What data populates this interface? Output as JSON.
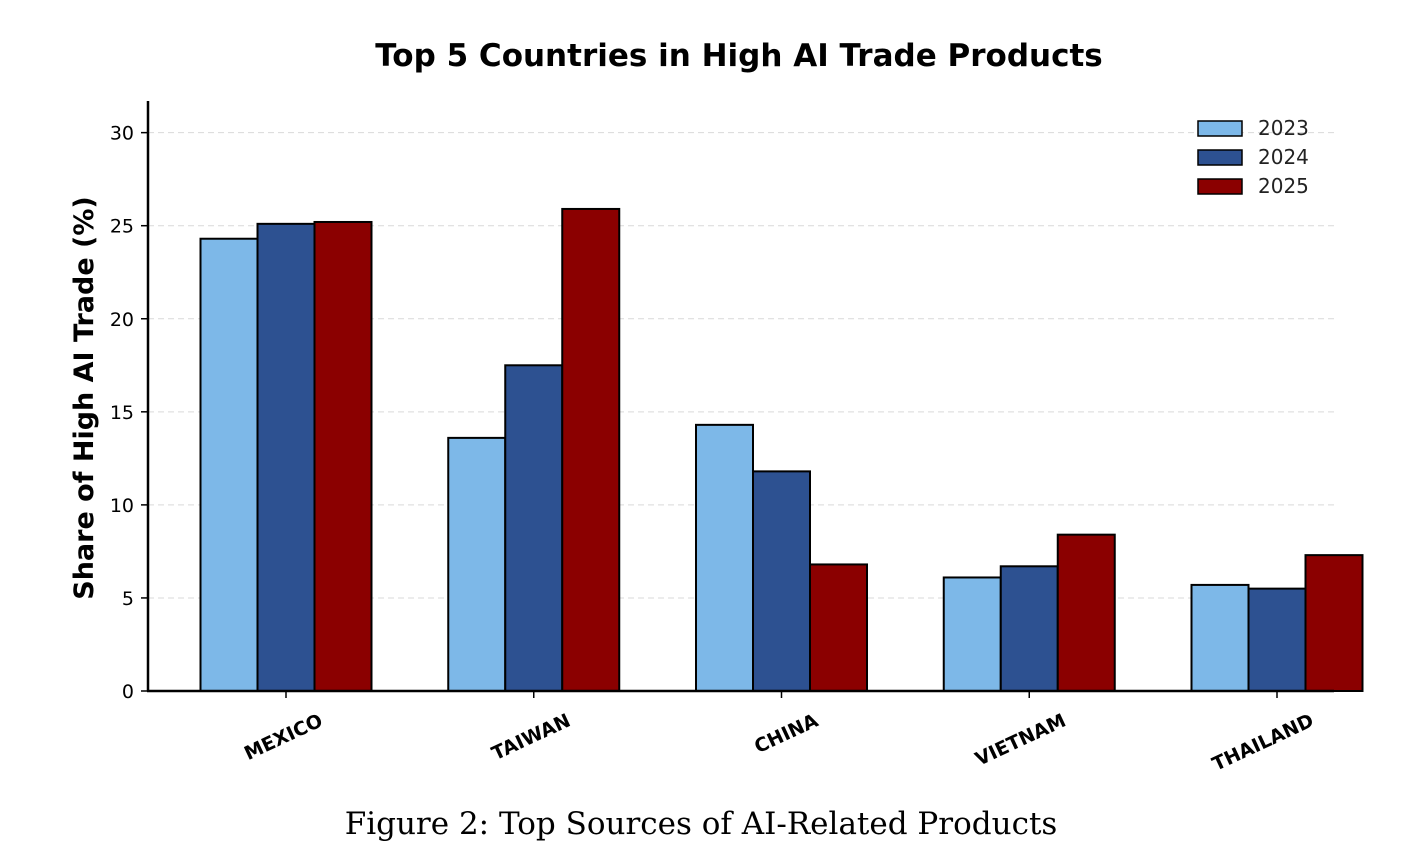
{
  "caption": "Figure 2: Top Sources of AI-Related Products",
  "chart_data": {
    "type": "bar",
    "title": "Top 5 Countries in High AI Trade Products",
    "xlabel": "",
    "ylabel": "Share of High AI Trade (%)",
    "categories": [
      "MEXICO",
      "TAIWAN",
      "CHINA",
      "VIETNAM",
      "THAILAND"
    ],
    "series": [
      {
        "name": "2023",
        "color": "#7db8e8",
        "values": [
          24.3,
          13.6,
          14.3,
          6.1,
          5.7
        ]
      },
      {
        "name": "2024",
        "color": "#2d5191",
        "values": [
          25.1,
          17.5,
          11.8,
          6.7,
          5.5
        ]
      },
      {
        "name": "2025",
        "color": "#8b0000",
        "values": [
          25.2,
          25.9,
          6.8,
          8.4,
          7.3
        ]
      }
    ],
    "ylim": [
      0,
      31.7
    ],
    "yticks": [
      0,
      5,
      10,
      15,
      20,
      25,
      30
    ],
    "grid": "horizontal-dashed",
    "legend": "top-right"
  }
}
